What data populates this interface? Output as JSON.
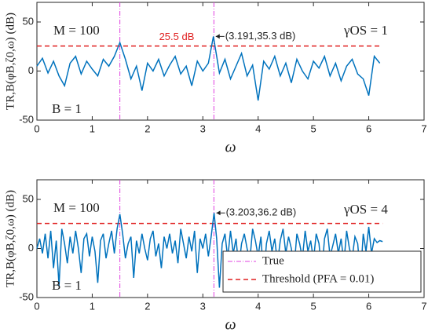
{
  "chart_data": [
    {
      "type": "line",
      "xlabel": "ω",
      "ylabel": "TR,B(φB,ζ0,ω) (dB)",
      "xlim": [
        0,
        7
      ],
      "xticks": [
        0,
        1,
        2,
        3,
        4,
        5,
        6,
        7
      ],
      "ylim": [
        -50,
        70
      ],
      "yticks": [
        -50,
        0,
        50
      ],
      "color": "#0072bd",
      "x": [
        0,
        0.1,
        0.2,
        0.3,
        0.4,
        0.5,
        0.6,
        0.7,
        0.8,
        0.9,
        1,
        1.1,
        1.2,
        1.3,
        1.4,
        1.5,
        1.6,
        1.7,
        1.8,
        1.9,
        2,
        2.1,
        2.2,
        2.3,
        2.4,
        2.5,
        2.6,
        2.7,
        2.8,
        2.9,
        3,
        3.1,
        3.191,
        3.3,
        3.4,
        3.5,
        3.6,
        3.7,
        3.8,
        3.9,
        4,
        4.1,
        4.2,
        4.3,
        4.4,
        4.5,
        4.6,
        4.7,
        4.8,
        4.9,
        5,
        5.1,
        5.2,
        5.3,
        5.4,
        5.5,
        5.6,
        5.7,
        5.8,
        5.9,
        6,
        6.1,
        6.2
      ],
      "values": [
        5,
        13,
        -2,
        10,
        -5,
        -15,
        8,
        15,
        -3,
        10,
        2,
        -5,
        12,
        5,
        15,
        29,
        12,
        -8,
        5,
        -20,
        8,
        0,
        12,
        -5,
        6,
        15,
        -3,
        5,
        -15,
        10,
        0,
        8,
        35.3,
        -2,
        12,
        -8,
        5,
        18,
        -5,
        6,
        -30,
        10,
        2,
        15,
        -5,
        8,
        -12,
        12,
        0,
        -8,
        10,
        3,
        15,
        -5,
        8,
        -10,
        5,
        12,
        -3,
        -8,
        -25,
        15,
        8
      ],
      "threshold": {
        "value": 25.5,
        "label": "25.5 dB",
        "color": "#e02020"
      },
      "true_line": {
        "x": [
          1.5,
          3.2
        ],
        "color": "#e040e0"
      },
      "annotations": [
        "M = 100",
        "γOS = 1",
        "B = 1"
      ],
      "peak": {
        "text": "(3.191,35.3 dB)",
        "x": 3.191,
        "y": 35.3
      }
    },
    {
      "type": "line",
      "xlabel": "ω",
      "ylabel": "TR,B(φB,ζ0,ω) (dB)",
      "xlim": [
        0,
        7
      ],
      "xticks": [
        0,
        1,
        2,
        3,
        4,
        5,
        6,
        7
      ],
      "ylim": [
        -50,
        70
      ],
      "yticks": [
        -50,
        0,
        50
      ],
      "color": "#0072bd",
      "x": [
        0,
        0.05,
        0.1,
        0.15,
        0.2,
        0.25,
        0.3,
        0.35,
        0.4,
        0.45,
        0.5,
        0.55,
        0.6,
        0.65,
        0.7,
        0.75,
        0.8,
        0.85,
        0.9,
        0.95,
        1,
        1.05,
        1.1,
        1.15,
        1.2,
        1.25,
        1.3,
        1.35,
        1.4,
        1.45,
        1.5,
        1.55,
        1.6,
        1.65,
        1.7,
        1.75,
        1.8,
        1.85,
        1.9,
        1.95,
        2,
        2.05,
        2.1,
        2.15,
        2.2,
        2.25,
        2.3,
        2.35,
        2.4,
        2.45,
        2.5,
        2.55,
        2.6,
        2.65,
        2.7,
        2.75,
        2.8,
        2.85,
        2.9,
        2.95,
        3,
        3.05,
        3.1,
        3.15,
        3.203,
        3.25,
        3.3,
        3.35,
        3.4,
        3.45,
        3.5,
        3.55,
        3.6,
        3.65,
        3.7,
        3.75,
        3.8,
        3.85,
        3.9,
        3.95,
        4,
        4.05,
        4.1,
        4.15,
        4.2,
        4.25,
        4.3,
        4.35,
        4.4,
        4.45,
        4.5,
        4.55,
        4.6,
        4.65,
        4.7,
        4.75,
        4.8,
        4.85,
        4.9,
        4.95,
        5,
        5.05,
        5.1,
        5.15,
        5.2,
        5.25,
        5.3,
        5.35,
        5.4,
        5.45,
        5.5,
        5.55,
        5.6,
        5.65,
        5.7,
        5.75,
        5.8,
        5.85,
        5.9,
        5.95,
        6,
        6.05,
        6.1,
        6.15,
        6.2,
        6.25
      ],
      "values": [
        0,
        10,
        -5,
        15,
        -10,
        18,
        -20,
        8,
        -38,
        20,
        5,
        -15,
        12,
        -5,
        18,
        0,
        -25,
        10,
        15,
        -8,
        12,
        -3,
        -35,
        8,
        15,
        -10,
        5,
        18,
        -5,
        20,
        35,
        15,
        -10,
        5,
        12,
        -30,
        8,
        -5,
        15,
        0,
        -12,
        10,
        18,
        -8,
        5,
        -20,
        12,
        0,
        15,
        -5,
        8,
        -15,
        20,
        5,
        -10,
        12,
        -3,
        18,
        -25,
        10,
        0,
        15,
        -8,
        12,
        36.2,
        10,
        -40,
        5,
        15,
        -10,
        18,
        -5,
        10,
        -20,
        5,
        15,
        0,
        -12,
        20,
        8,
        -8,
        12,
        -30,
        5,
        18,
        -3,
        10,
        -15,
        8,
        20,
        -5,
        12,
        0,
        -20,
        15,
        5,
        -10,
        18,
        -3,
        8,
        -12,
        15,
        5,
        -25,
        10,
        20,
        -8,
        3,
        15,
        -5,
        10,
        -15,
        18,
        0,
        -10,
        12,
        5,
        -30,
        15,
        -3,
        22,
        -5,
        10,
        6,
        8,
        7
      ],
      "threshold": {
        "name": "Threshold (PFA = 0.01)",
        "value": 25.5,
        "color": "#e02020"
      },
      "true_line": {
        "name": "True",
        "x": [
          1.5,
          3.2
        ],
        "color": "#e040e0"
      },
      "legend": "lower right",
      "annotations": [
        "M = 100",
        "γOS = 4",
        "B = 1"
      ],
      "peak": {
        "text": "(3.203,36.2 dB)",
        "x": 3.203,
        "y": 36.2
      }
    }
  ]
}
